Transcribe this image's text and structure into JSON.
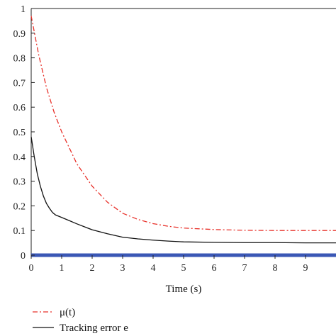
{
  "chart_data": {
    "type": "line",
    "xlabel": "Time (s)",
    "ylabel": "",
    "xlim": [
      0,
      10
    ],
    "ylim": [
      0,
      1
    ],
    "x_ticks": [
      "0",
      "1",
      "2",
      "3",
      "4",
      "5",
      "6",
      "7",
      "8",
      "9"
    ],
    "y_ticks": [
      "0",
      "0.1",
      "0.2",
      "0.3",
      "0.4",
      "0.5",
      "0.6",
      "0.7",
      "0.8",
      "0.9",
      "1"
    ],
    "grid": false,
    "legend_position": "bottom-left",
    "series": [
      {
        "name": "μ(t)",
        "color": "#e8312a",
        "line_style": "dash-dot",
        "x": [
          0,
          0.25,
          0.5,
          0.75,
          1,
          1.5,
          2,
          2.5,
          3,
          3.5,
          4,
          4.5,
          5,
          6,
          7,
          8,
          9,
          10
        ],
        "y": [
          0.97,
          0.81,
          0.68,
          0.58,
          0.5,
          0.37,
          0.28,
          0.215,
          0.17,
          0.145,
          0.128,
          0.117,
          0.11,
          0.104,
          0.101,
          0.1,
          0.1,
          0.1
        ]
      },
      {
        "name": "Tracking error e",
        "color": "#111111",
        "line_style": "solid",
        "x": [
          0,
          0.1,
          0.2,
          0.3,
          0.4,
          0.5,
          0.6,
          0.7,
          0.8,
          1,
          1.25,
          1.5,
          2,
          2.5,
          3,
          3.5,
          4,
          4.5,
          5,
          6,
          7,
          8,
          9,
          10
        ],
        "y": [
          0.48,
          0.4,
          0.33,
          0.28,
          0.24,
          0.21,
          0.19,
          0.173,
          0.163,
          0.153,
          0.14,
          0.127,
          0.103,
          0.087,
          0.073,
          0.066,
          0.061,
          0.057,
          0.054,
          0.052,
          0.051,
          0.051,
          0.05,
          0.05
        ]
      },
      {
        "name": "",
        "color": "#3a57b5",
        "line_style": "solid",
        "x": [
          0,
          10
        ],
        "y": [
          0,
          0
        ]
      }
    ]
  }
}
